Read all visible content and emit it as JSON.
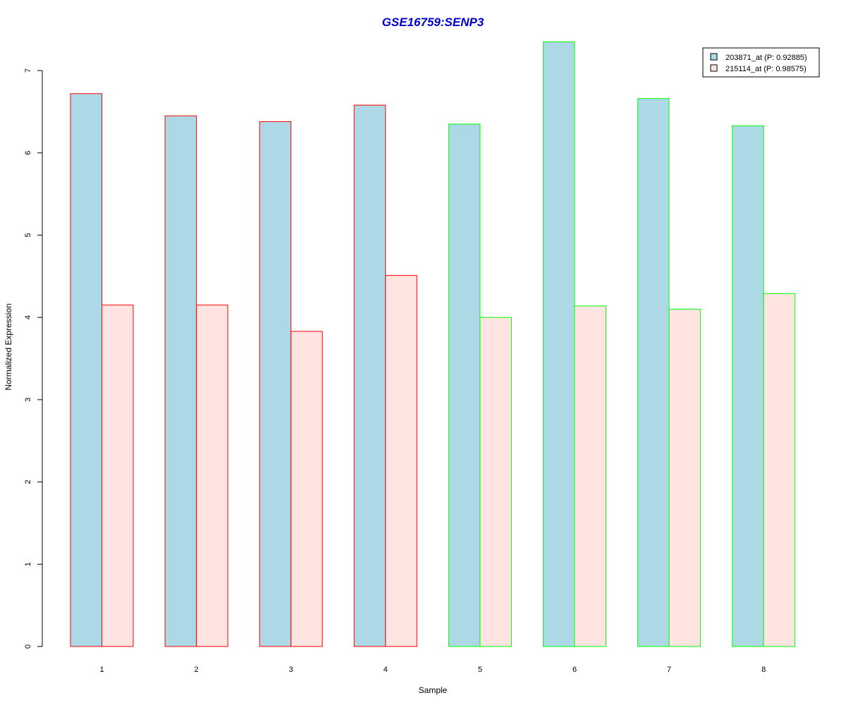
{
  "chart_data": {
    "type": "bar",
    "title": "GSE16759:SENP3",
    "xlabel": "Sample",
    "ylabel": "Normalized Expression",
    "categories": [
      "1",
      "2",
      "3",
      "4",
      "5",
      "6",
      "7",
      "8"
    ],
    "y_ticks": [
      "0",
      "1",
      "2",
      "3",
      "4",
      "5",
      "6",
      "7"
    ],
    "ylim": [
      0,
      7.35
    ],
    "series": [
      {
        "name": "203871_at (P: 0.92885)",
        "fill": "#add8e6",
        "values": [
          6.72,
          6.45,
          6.38,
          6.58,
          6.35,
          7.35,
          6.66,
          6.33
        ]
      },
      {
        "name": "215114_at (P: 0.98575)",
        "fill": "#ffe4e1",
        "values": [
          4.15,
          4.15,
          3.83,
          4.51,
          4.0,
          4.14,
          4.1,
          4.29
        ]
      }
    ],
    "group_border_colors": [
      "#ff0000",
      "#ff0000",
      "#ff0000",
      "#ff0000",
      "#00ff00",
      "#00ff00",
      "#00ff00",
      "#00ff00"
    ],
    "title_color": "#0000cd",
    "legend_position": "top-right",
    "grid": false
  }
}
